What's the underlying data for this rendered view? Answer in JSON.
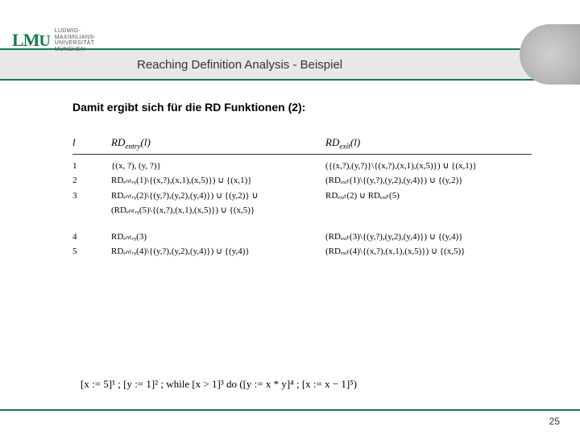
{
  "header": {
    "logo_text": "LMU",
    "logo_sub_lines": [
      "Ludwig-",
      "Maximilians-",
      "Universität",
      "München"
    ],
    "title": "Reaching Definition Analysis - Beispiel"
  },
  "intro": "Damit ergibt sich für die RD Funktionen (2):",
  "table": {
    "head_entry": "RDₑₙₜᵣᵧ(l)",
    "head_exit": "RDₑₓᵢₜ(l)",
    "rows": [
      {
        "l": "1",
        "entry": "{(x, ?), (y, ?)}",
        "exit": "({(x,?),(y,?)}\\{(x,?),(x,1),(x,5)}) ∪ {(x,1)}"
      },
      {
        "l": "2",
        "entry": "RDₑₙₜᵣᵧ(1)\\{(x,?),(x,1),(x,5)}) ∪ {(x,1)}",
        "exit": "(RDₑₓᵢₜ(1)\\{(y,?),(y,2),(y,4)}) ∪ {(y,2)}"
      },
      {
        "l": "3",
        "entry": "RDₑₙₜᵣᵧ(2)\\{(y,?),(y,2),(y,4)}) ∪ {(y,2)} ∪",
        "exit": "RDₑₓᵢₜ(2) ∪ RDₑₓᵢₜ(5)"
      },
      {
        "l": "",
        "entry": "(RDₑₙₜᵣᵧ(5)\\{(x,?),(x,1),(x,5)}) ∪ {(x,5)}",
        "exit": ""
      },
      {
        "l": "4",
        "entry": "RDₑₙₜᵣᵧ(3)",
        "exit": "(RDₑₓᵢₜ(3)\\{(y,?),(y,2),(y,4)}) ∪ {(y,4)}"
      },
      {
        "l": "5",
        "entry": "RDₑₙₜᵣᵧ(4)\\{(y,?),(y,2),(y,4)}) ∪ {(y,4)}",
        "exit": "(RDₑₓᵢₜ(4)\\{(x,?),(x,1),(x,5)}) ∪ {(x,5)}"
      }
    ]
  },
  "program": "[x := 5]¹ ; [y := 1]² ; while [x > 1]³ do ([y := x * y]⁴ ; [x := x − 1]⁵)",
  "page": "25",
  "colors": {
    "accent": "#1a7a4a",
    "band": "#e8e8e8",
    "text": "#333333"
  }
}
